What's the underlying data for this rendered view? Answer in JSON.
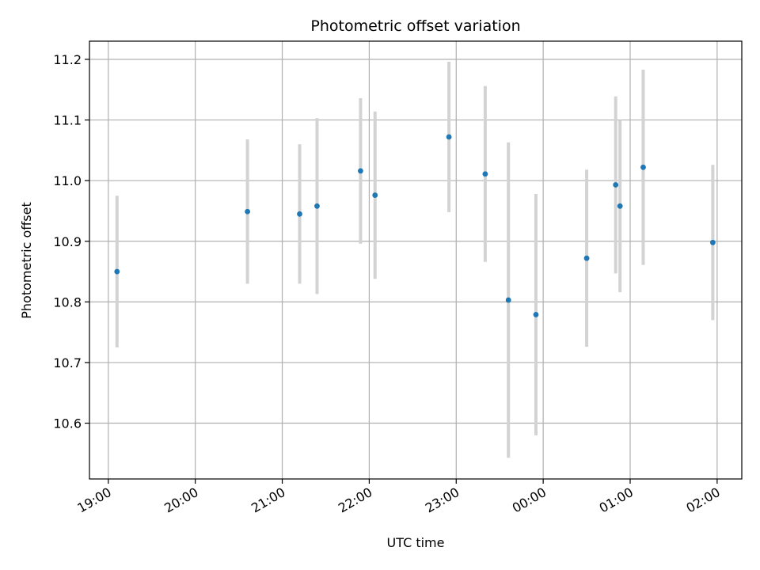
{
  "chart_data": {
    "type": "scatter",
    "title": "Photometric offset variation",
    "xlabel": "UTC time",
    "ylabel": "Photometric offset",
    "grid": true,
    "xlim": [
      "18:47",
      "02:17"
    ],
    "ylim": [
      10.508,
      11.23
    ],
    "xticks": [
      "19:00",
      "20:00",
      "21:00",
      "22:00",
      "23:00",
      "00:00",
      "01:00",
      "02:00"
    ],
    "yticks": [
      "10.6",
      "10.7",
      "10.8",
      "10.9",
      "11.0",
      "11.1",
      "11.2"
    ],
    "marker_color": "#1f77b4",
    "errorbar_color": "#d3d3d3",
    "series": [
      {
        "points": [
          {
            "time": "19:06",
            "y": 10.85,
            "err": 0.125
          },
          {
            "time": "20:36",
            "y": 10.949,
            "err": 0.119
          },
          {
            "time": "21:12",
            "y": 10.945,
            "err": 0.115
          },
          {
            "time": "21:24",
            "y": 10.958,
            "err": 0.145
          },
          {
            "time": "21:54",
            "y": 11.016,
            "err": 0.12
          },
          {
            "time": "22:04",
            "y": 10.976,
            "err": 0.138
          },
          {
            "time": "22:55",
            "y": 11.072,
            "err": 0.124
          },
          {
            "time": "23:20",
            "y": 11.011,
            "err": 0.145
          },
          {
            "time": "23:36",
            "y": 10.803,
            "err": 0.26
          },
          {
            "time": "23:55",
            "y": 10.779,
            "err": 0.199
          },
          {
            "time": "00:30",
            "y": 10.872,
            "err": 0.146
          },
          {
            "time": "00:50",
            "y": 10.993,
            "err": 0.146
          },
          {
            "time": "00:53",
            "y": 10.958,
            "err": 0.142
          },
          {
            "time": "01:09",
            "y": 11.022,
            "err": 0.161
          },
          {
            "time": "01:57",
            "y": 10.898,
            "err": 0.128
          }
        ]
      }
    ]
  }
}
